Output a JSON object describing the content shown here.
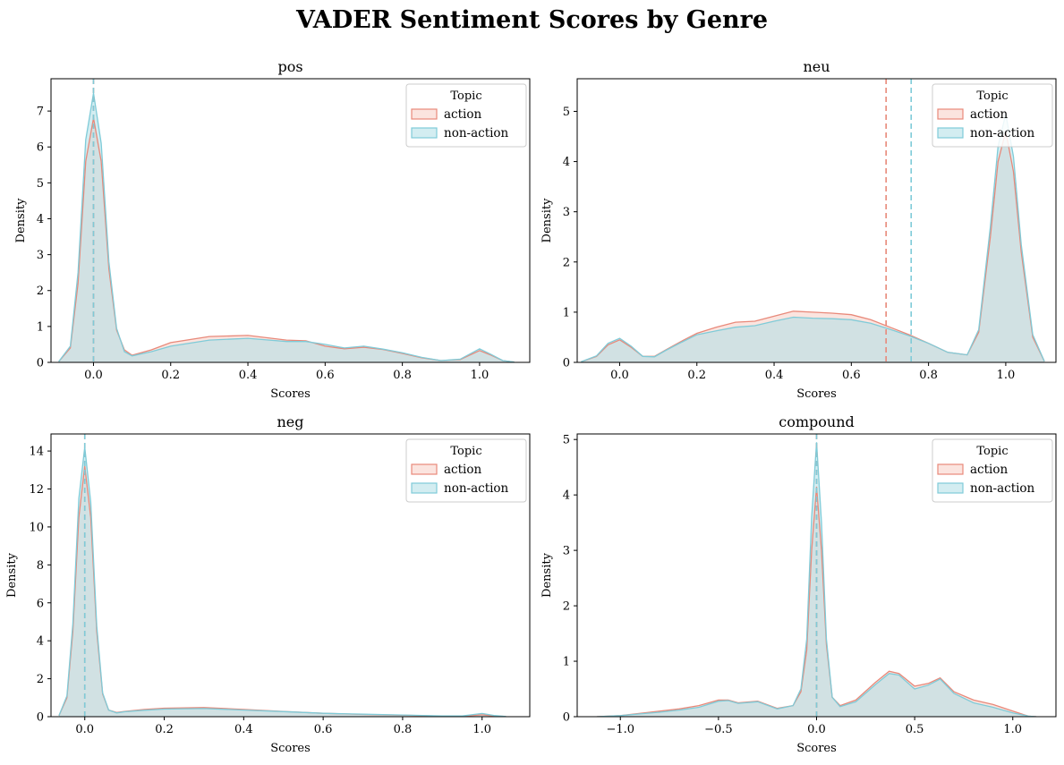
{
  "suptitle": "VADER Sentiment Scores by Genre",
  "colors": {
    "action": "#e8897a",
    "non_action": "#7fcbd8",
    "overlap_fill": "#dfe3e3"
  },
  "chart_data": [
    {
      "type": "area",
      "title": "pos",
      "xlabel": "Scores",
      "ylabel": "Density",
      "xlim": [
        -0.11,
        1.13
      ],
      "ylim": [
        0,
        7.9
      ],
      "xticks": [
        0.0,
        0.2,
        0.4,
        0.6,
        0.8,
        1.0
      ],
      "xticklabels": [
        "0.0",
        "0.2",
        "0.4",
        "0.6",
        "0.8",
        "1.0"
      ],
      "yticks": [
        0,
        1,
        2,
        3,
        4,
        5,
        6,
        7
      ],
      "yticklabels": [
        "0",
        "1",
        "2",
        "3",
        "4",
        "5",
        "6",
        "7"
      ],
      "legend": {
        "title": "Topic",
        "entries": [
          "action",
          "non-action"
        ],
        "position": "top-right"
      },
      "grid": false,
      "series": [
        {
          "name": "action",
          "mean_line": 0.0,
          "x": [
            -0.09,
            -0.06,
            -0.04,
            -0.02,
            0.0,
            0.02,
            0.04,
            0.06,
            0.08,
            0.1,
            0.15,
            0.2,
            0.3,
            0.4,
            0.5,
            0.55,
            0.6,
            0.65,
            0.7,
            0.75,
            0.8,
            0.85,
            0.9,
            0.95,
            1.0,
            1.03,
            1.06,
            1.09
          ],
          "y": [
            0.02,
            0.4,
            2.2,
            5.6,
            6.8,
            5.6,
            2.6,
            0.9,
            0.35,
            0.2,
            0.35,
            0.55,
            0.72,
            0.75,
            0.62,
            0.6,
            0.45,
            0.38,
            0.42,
            0.36,
            0.25,
            0.13,
            0.05,
            0.08,
            0.33,
            0.2,
            0.05,
            0.01
          ]
        },
        {
          "name": "non-action",
          "mean_line": 0.0,
          "x": [
            -0.09,
            -0.06,
            -0.04,
            -0.02,
            0.0,
            0.02,
            0.04,
            0.06,
            0.08,
            0.1,
            0.15,
            0.2,
            0.3,
            0.4,
            0.5,
            0.55,
            0.6,
            0.65,
            0.7,
            0.75,
            0.8,
            0.85,
            0.9,
            0.95,
            1.0,
            1.03,
            1.06,
            1.09
          ],
          "y": [
            0.02,
            0.45,
            2.5,
            6.2,
            7.5,
            6.1,
            2.8,
            0.95,
            0.3,
            0.18,
            0.3,
            0.45,
            0.62,
            0.67,
            0.58,
            0.58,
            0.5,
            0.4,
            0.45,
            0.37,
            0.27,
            0.14,
            0.05,
            0.09,
            0.38,
            0.22,
            0.05,
            0.01
          ]
        }
      ]
    },
    {
      "type": "area",
      "title": "neu",
      "xlabel": "Scores",
      "ylabel": "Density",
      "xlim": [
        -0.11,
        1.13
      ],
      "ylim": [
        0,
        5.65
      ],
      "xticks": [
        0.0,
        0.2,
        0.4,
        0.6,
        0.8,
        1.0
      ],
      "xticklabels": [
        "0.0",
        "0.2",
        "0.4",
        "0.6",
        "0.8",
        "1.0"
      ],
      "yticks": [
        0,
        1,
        2,
        3,
        4,
        5
      ],
      "yticklabels": [
        "0",
        "1",
        "2",
        "3",
        "4",
        "5"
      ],
      "legend": {
        "title": "Topic",
        "entries": [
          "action",
          "non-action"
        ],
        "position": "top-right"
      },
      "grid": false,
      "series": [
        {
          "name": "action",
          "mean_line": 0.69,
          "x": [
            -0.1,
            -0.06,
            -0.03,
            0.0,
            0.03,
            0.06,
            0.09,
            0.12,
            0.16,
            0.2,
            0.25,
            0.3,
            0.35,
            0.4,
            0.45,
            0.5,
            0.55,
            0.6,
            0.65,
            0.7,
            0.75,
            0.8,
            0.85,
            0.9,
            0.93,
            0.96,
            0.98,
            1.0,
            1.02,
            1.04,
            1.07,
            1.1
          ],
          "y": [
            0.01,
            0.12,
            0.35,
            0.45,
            0.3,
            0.12,
            0.12,
            0.25,
            0.42,
            0.58,
            0.7,
            0.8,
            0.82,
            0.92,
            1.02,
            1.0,
            0.98,
            0.95,
            0.85,
            0.7,
            0.55,
            0.38,
            0.2,
            0.15,
            0.6,
            2.5,
            4.0,
            4.6,
            3.8,
            2.2,
            0.5,
            0.02
          ]
        },
        {
          "name": "non-action",
          "mean_line": 0.755,
          "x": [
            -0.1,
            -0.06,
            -0.03,
            0.0,
            0.03,
            0.06,
            0.09,
            0.12,
            0.16,
            0.2,
            0.25,
            0.3,
            0.35,
            0.4,
            0.45,
            0.5,
            0.55,
            0.6,
            0.65,
            0.7,
            0.75,
            0.8,
            0.85,
            0.9,
            0.93,
            0.96,
            0.98,
            1.0,
            1.02,
            1.04,
            1.07,
            1.1
          ],
          "y": [
            0.01,
            0.13,
            0.38,
            0.48,
            0.32,
            0.12,
            0.11,
            0.24,
            0.4,
            0.55,
            0.63,
            0.7,
            0.73,
            0.82,
            0.9,
            0.88,
            0.87,
            0.85,
            0.78,
            0.66,
            0.53,
            0.38,
            0.2,
            0.15,
            0.65,
            2.7,
            4.3,
            4.95,
            4.1,
            2.35,
            0.55,
            0.02
          ]
        }
      ]
    },
    {
      "type": "area",
      "title": "neg",
      "xlabel": "Scores",
      "ylabel": "Density",
      "xlim": [
        -0.085,
        1.12
      ],
      "ylim": [
        0,
        14.9
      ],
      "xticks": [
        0.0,
        0.2,
        0.4,
        0.6,
        0.8,
        1.0
      ],
      "xticklabels": [
        "0.0",
        "0.2",
        "0.4",
        "0.6",
        "0.8",
        "1.0"
      ],
      "yticks": [
        0,
        2,
        4,
        6,
        8,
        10,
        12,
        14
      ],
      "yticklabels": [
        "0",
        "2",
        "4",
        "6",
        "8",
        "10",
        "12",
        "14"
      ],
      "legend": {
        "title": "Topic",
        "entries": [
          "action",
          "non-action"
        ],
        "position": "top-right"
      },
      "grid": false,
      "series": [
        {
          "name": "action",
          "mean_line": 0.0,
          "x": [
            -0.065,
            -0.045,
            -0.03,
            -0.015,
            0.0,
            0.015,
            0.03,
            0.045,
            0.06,
            0.08,
            0.1,
            0.15,
            0.2,
            0.3,
            0.4,
            0.5,
            0.6,
            0.7,
            0.8,
            0.9,
            0.95,
            1.0,
            1.03,
            1.06
          ],
          "y": [
            0.05,
            1.0,
            4.5,
            10.5,
            13.2,
            10.5,
            4.5,
            1.2,
            0.35,
            0.22,
            0.28,
            0.38,
            0.45,
            0.48,
            0.38,
            0.28,
            0.18,
            0.12,
            0.08,
            0.03,
            0.02,
            0.1,
            0.04,
            0.01
          ]
        },
        {
          "name": "non-action",
          "mean_line": 0.0,
          "x": [
            -0.065,
            -0.045,
            -0.03,
            -0.015,
            0.0,
            0.015,
            0.03,
            0.045,
            0.06,
            0.08,
            0.1,
            0.15,
            0.2,
            0.3,
            0.4,
            0.5,
            0.6,
            0.7,
            0.8,
            0.9,
            0.95,
            1.0,
            1.03,
            1.06
          ],
          "y": [
            0.05,
            1.1,
            4.9,
            11.5,
            14.2,
            11.3,
            4.8,
            1.25,
            0.35,
            0.2,
            0.26,
            0.34,
            0.4,
            0.43,
            0.35,
            0.27,
            0.18,
            0.13,
            0.09,
            0.04,
            0.04,
            0.17,
            0.06,
            0.01
          ]
        }
      ]
    },
    {
      "type": "area",
      "title": "compound",
      "xlabel": "Scores",
      "ylabel": "Density",
      "xlim": [
        -1.22,
        1.22
      ],
      "ylim": [
        0,
        5.1
      ],
      "xticks": [
        -1.0,
        -0.5,
        0.0,
        0.5,
        1.0
      ],
      "xticklabels": [
        "−1.0",
        "−0.5",
        "0.0",
        "0.5",
        "1.0"
      ],
      "yticks": [
        0,
        1,
        2,
        3,
        4,
        5
      ],
      "yticklabels": [
        "0",
        "1",
        "2",
        "3",
        "4",
        "5"
      ],
      "legend": {
        "title": "Topic",
        "entries": [
          "action",
          "non-action"
        ],
        "position": "top-right"
      },
      "grid": false,
      "series": [
        {
          "name": "action",
          "mean_line": 0.0,
          "x": [
            -1.12,
            -1.0,
            -0.9,
            -0.8,
            -0.7,
            -0.6,
            -0.5,
            -0.45,
            -0.4,
            -0.3,
            -0.2,
            -0.12,
            -0.08,
            -0.05,
            -0.025,
            0.0,
            0.025,
            0.05,
            0.08,
            0.12,
            0.2,
            0.3,
            0.37,
            0.42,
            0.5,
            0.57,
            0.63,
            0.7,
            0.8,
            0.9,
            1.0,
            1.08,
            1.12
          ],
          "y": [
            0.0,
            0.02,
            0.06,
            0.1,
            0.14,
            0.2,
            0.3,
            0.3,
            0.25,
            0.28,
            0.15,
            0.2,
            0.45,
            1.2,
            3.0,
            4.15,
            3.0,
            1.3,
            0.35,
            0.2,
            0.3,
            0.62,
            0.82,
            0.78,
            0.55,
            0.6,
            0.7,
            0.45,
            0.3,
            0.22,
            0.1,
            0.01,
            0.0
          ]
        },
        {
          "name": "non-action",
          "mean_line": 0.0,
          "x": [
            -1.12,
            -1.0,
            -0.9,
            -0.8,
            -0.7,
            -0.6,
            -0.5,
            -0.45,
            -0.4,
            -0.3,
            -0.2,
            -0.12,
            -0.08,
            -0.05,
            -0.025,
            0.0,
            0.025,
            0.05,
            0.08,
            0.12,
            0.2,
            0.3,
            0.37,
            0.42,
            0.5,
            0.57,
            0.63,
            0.7,
            0.8,
            0.9,
            1.0,
            1.08,
            1.12
          ],
          "y": [
            0.0,
            0.02,
            0.05,
            0.08,
            0.12,
            0.17,
            0.28,
            0.29,
            0.24,
            0.27,
            0.14,
            0.2,
            0.5,
            1.4,
            3.6,
            4.95,
            3.5,
            1.4,
            0.35,
            0.18,
            0.27,
            0.58,
            0.78,
            0.75,
            0.5,
            0.57,
            0.68,
            0.42,
            0.25,
            0.17,
            0.07,
            0.01,
            0.0
          ]
        }
      ]
    }
  ]
}
